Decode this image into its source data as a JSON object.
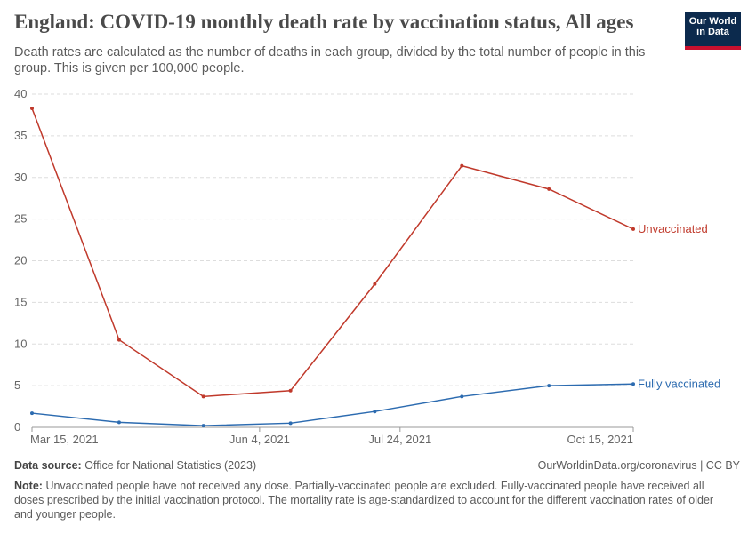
{
  "chart_data": {
    "type": "line",
    "title": "England: COVID-19 monthly death rate by vaccination status, All ages",
    "subtitle": "Death rates are calculated as the number of deaths in each group, divided by the total number of people in this group. This is given per 100,000 people.",
    "x": [
      "2021-03-15",
      "2021-04-15",
      "2021-05-15",
      "2021-06-15",
      "2021-07-15",
      "2021-08-15",
      "2021-09-15",
      "2021-10-15"
    ],
    "series": [
      {
        "name": "Unvaccinated",
        "color": "#c0392b",
        "values": [
          38.3,
          10.5,
          3.7,
          4.4,
          17.2,
          31.4,
          28.6,
          23.8
        ]
      },
      {
        "name": "Fully vaccinated",
        "color": "#2c6bb0",
        "values": [
          1.7,
          0.6,
          0.2,
          0.5,
          1.9,
          3.7,
          5.0,
          5.2
        ]
      }
    ],
    "xlim": [
      "2021-03-15",
      "2021-10-15"
    ],
    "xticks": [
      {
        "value": "2021-03-15",
        "label": "Mar 15, 2021"
      },
      {
        "value": "2021-06-04",
        "label": "Jun 4, 2021"
      },
      {
        "value": "2021-07-24",
        "label": "Jul 24, 2021"
      },
      {
        "value": "2021-10-15",
        "label": "Oct 15, 2021"
      }
    ],
    "ylim": [
      0,
      40
    ],
    "yticks": [
      0,
      5,
      10,
      15,
      20,
      25,
      30,
      35,
      40
    ],
    "grid": true,
    "source_label": "Data source:",
    "source": "Office for National Statistics (2023)",
    "site": "OurWorldinData.org/coronavirus | CC BY",
    "note_label": "Note:",
    "note": "Unvaccinated people have not received any dose. Partially-vaccinated people are excluded. Fully-vaccinated people have received all doses prescribed by the initial vaccination protocol. The mortality rate is age-standardized to account for the different vaccination rates of older and younger people.",
    "logo": [
      "Our World",
      "in Data"
    ]
  }
}
